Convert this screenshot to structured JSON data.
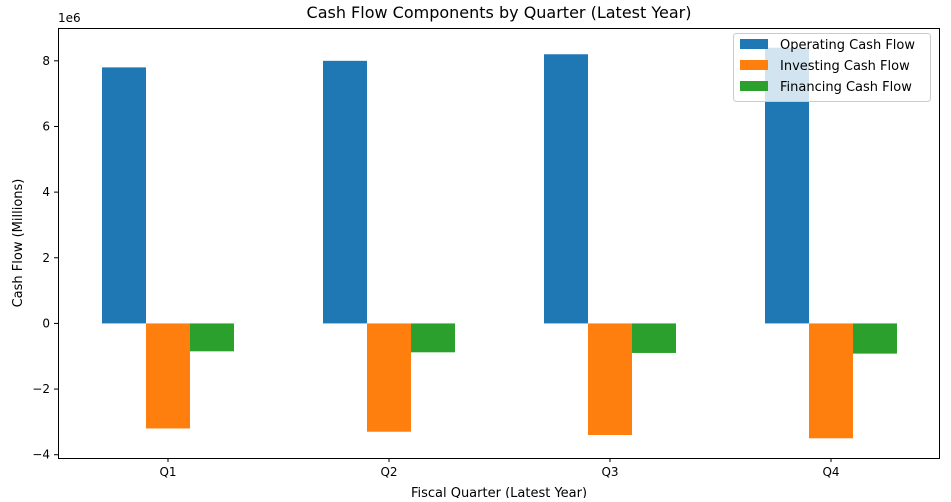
{
  "chart_data": {
    "type": "bar",
    "title": "Cash Flow Components by Quarter (Latest Year)",
    "xlabel": "Fiscal Quarter (Latest Year)",
    "ylabel": "Cash Flow (Millions)",
    "y_offset_text": "1e6",
    "categories": [
      "Q1",
      "Q2",
      "Q3",
      "Q4"
    ],
    "ylim": [
      -4.1,
      9.0
    ],
    "yticks": [
      -4,
      -2,
      0,
      2,
      4,
      6,
      8
    ],
    "ytick_labels": [
      "−4",
      "−2",
      "0",
      "2",
      "4",
      "6",
      "8"
    ],
    "y_scale_factor": 1000000,
    "grid": false,
    "legend_position": "top-right",
    "series": [
      {
        "name": "Operating Cash Flow",
        "color": "#1f77b4",
        "values": [
          7.8,
          8.0,
          8.2,
          8.4
        ]
      },
      {
        "name": "Investing Cash Flow",
        "color": "#ff7f0e",
        "values": [
          -3.2,
          -3.3,
          -3.4,
          -3.5
        ]
      },
      {
        "name": "Financing Cash Flow",
        "color": "#2ca02c",
        "values": [
          -0.85,
          -0.88,
          -0.9,
          -0.92
        ]
      }
    ]
  }
}
